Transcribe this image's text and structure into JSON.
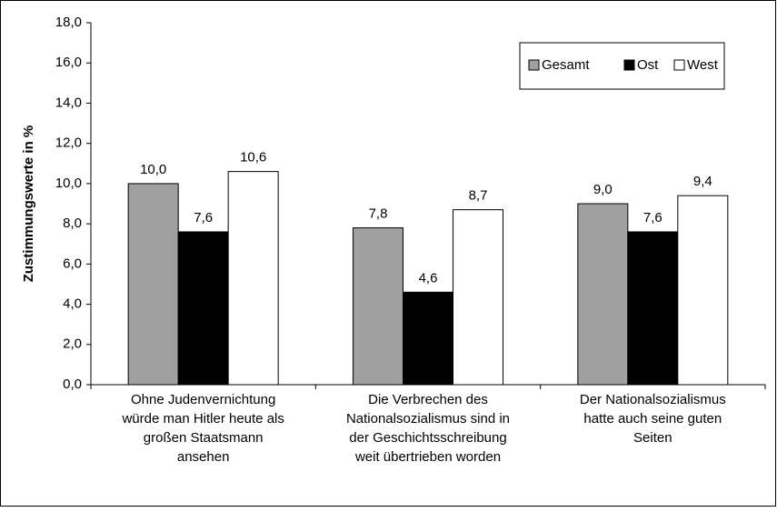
{
  "chart_data": {
    "type": "bar",
    "y_label": "Zustimmungswerte in %",
    "categories": [
      "Ohne Judenvernichtung\nwürde man Hitler heute als\ngroßen Staatsmann\nansehen",
      "Die Verbrechen des\nNationalsozialismus sind in\nder Geschichtsschreibung\nweit übertrieben worden",
      "Der Nationalsozialismus\nhatte auch seine guten\nSeiten"
    ],
    "series": [
      {
        "name": "Gesamt",
        "color": "#a0a0a0",
        "values": [
          10.0,
          7.8,
          9.0
        ],
        "value_labels": [
          "10,0",
          "7,8",
          "9,0"
        ]
      },
      {
        "name": "Ost",
        "color": "#000000",
        "values": [
          7.6,
          4.6,
          7.6
        ],
        "value_labels": [
          "7,6",
          "4,6",
          "7,6"
        ]
      },
      {
        "name": "West",
        "color": "#ffffff",
        "values": [
          10.6,
          8.7,
          9.4
        ],
        "value_labels": [
          "10,6",
          "8,7",
          "9,4"
        ]
      }
    ],
    "ylim": [
      0,
      18
    ],
    "yticks": [
      {
        "value": 0,
        "label": "0,0"
      },
      {
        "value": 2,
        "label": "2,0"
      },
      {
        "value": 4,
        "label": "4,0"
      },
      {
        "value": 6,
        "label": "6,0"
      },
      {
        "value": 8,
        "label": "8,0"
      },
      {
        "value": 10,
        "label": "10,0"
      },
      {
        "value": 12,
        "label": "12,0"
      },
      {
        "value": 14,
        "label": "14,0"
      },
      {
        "value": 16,
        "label": "16,0"
      },
      {
        "value": 18,
        "label": "18,0"
      }
    ],
    "grid": false,
    "legend": "upper right"
  }
}
